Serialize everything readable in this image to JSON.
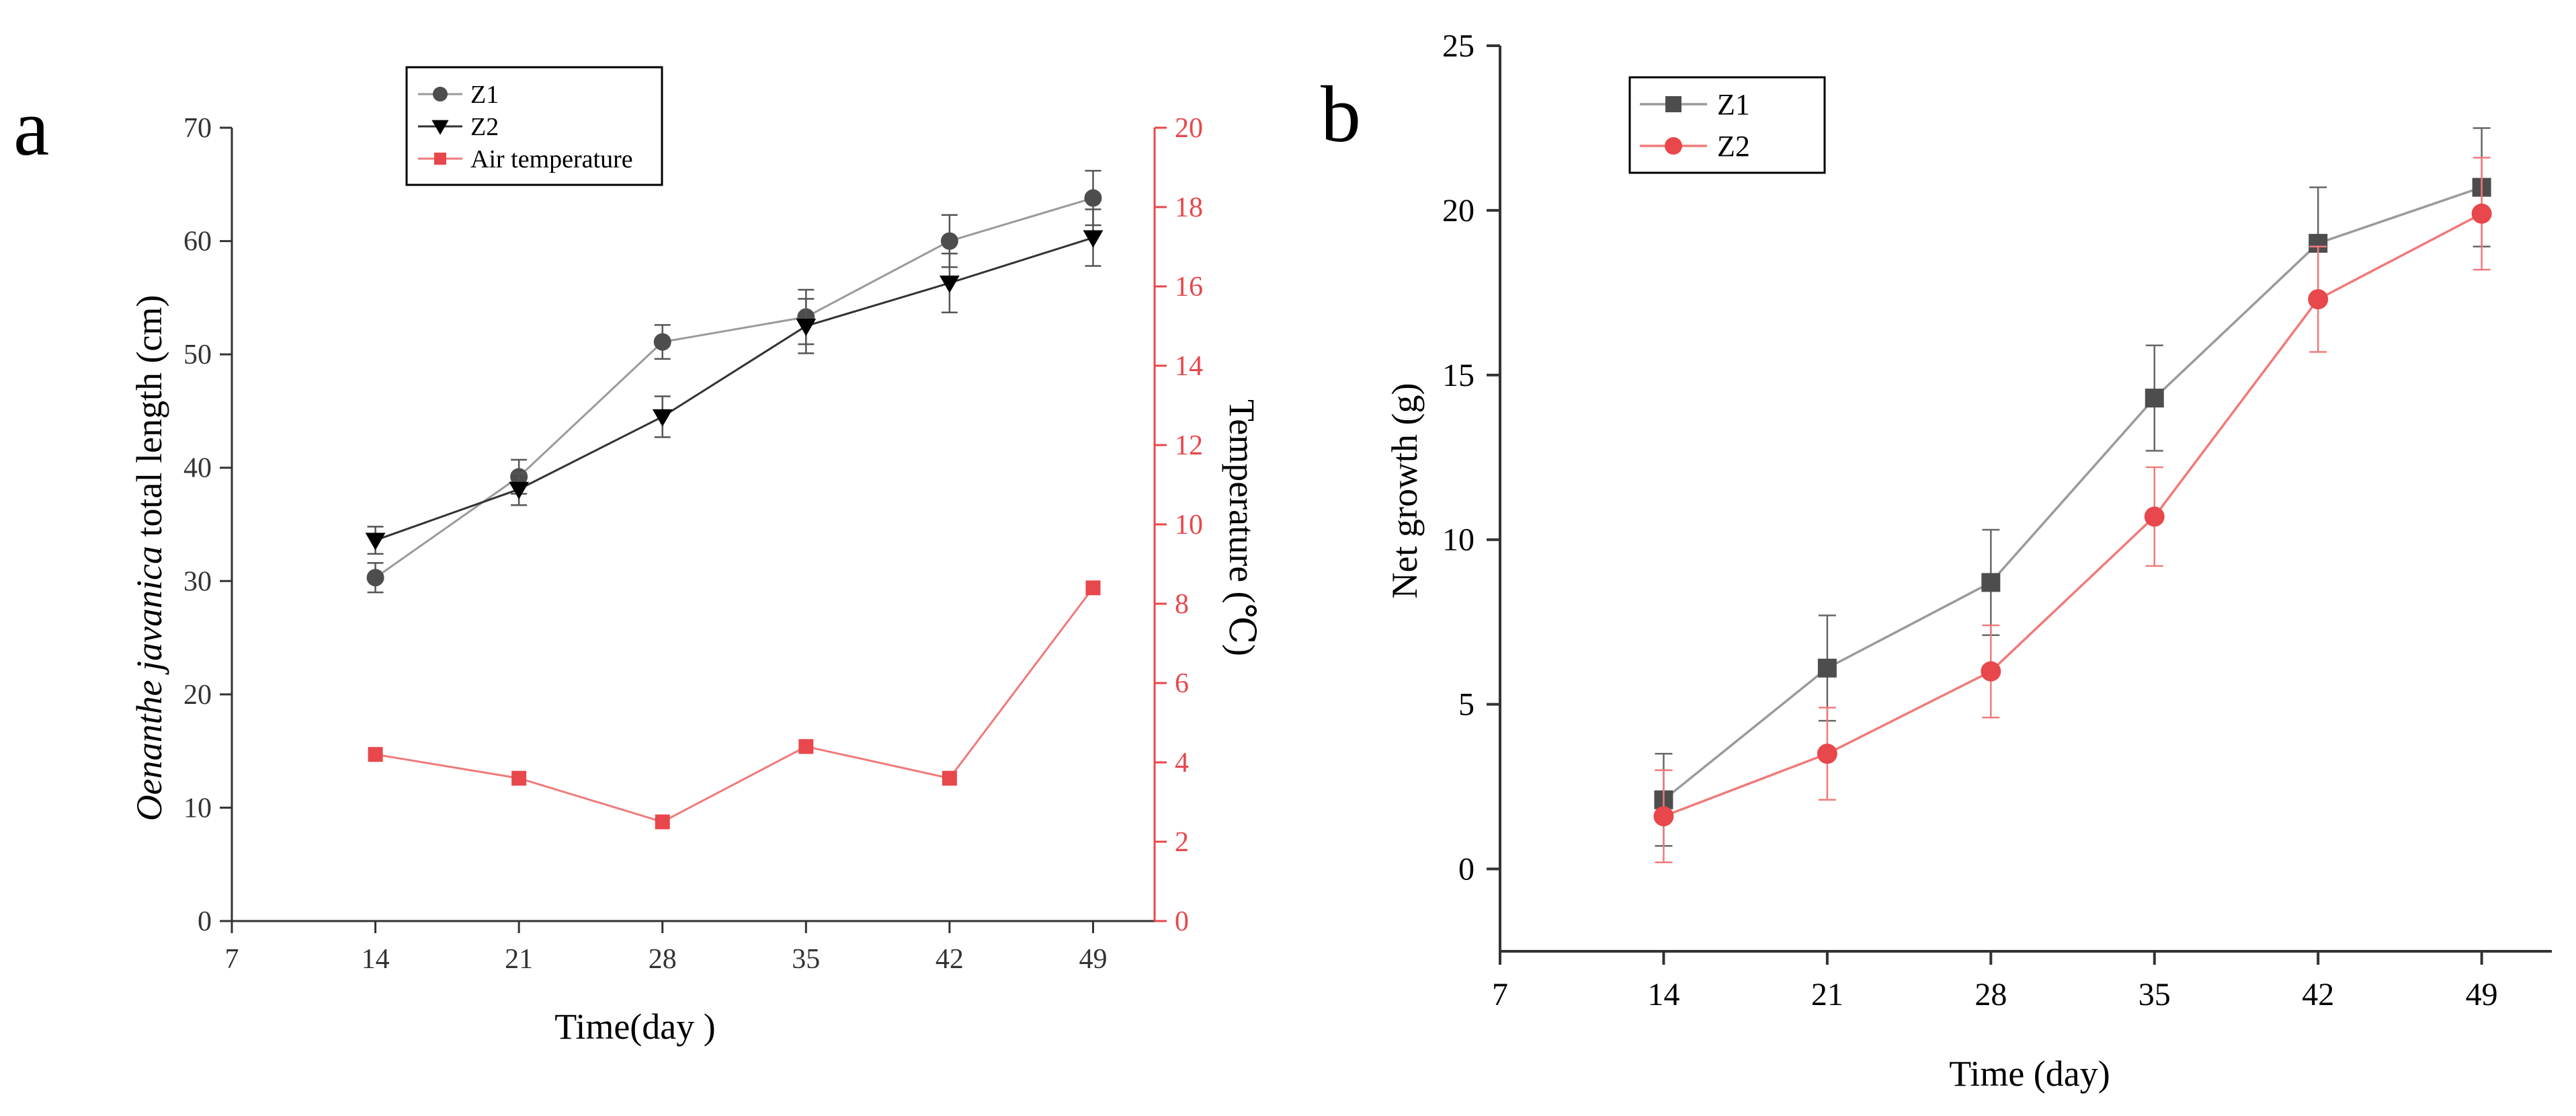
{
  "colors": {
    "axis": "#333333",
    "z1_a": "#4d4d4d",
    "z2_a": "#000000",
    "temp": "#e8474b",
    "z1_b": "#4d4d4d",
    "z2_b": "#e8474b",
    "line_gray": "#9a9a9a",
    "line_red": "#f07a7a"
  },
  "chart_data": [
    {
      "panel": "a",
      "type": "line",
      "title": "",
      "xlabel": "Time(day )",
      "ylabel_italic": "Oenanthe javanica",
      "ylabel_rest": " total length (cm)",
      "y2label": "Temperature (℃)",
      "xlim": [
        7,
        52
      ],
      "ylim": [
        0,
        70
      ],
      "y2lim": [
        0,
        20
      ],
      "x": [
        14,
        21,
        28,
        35,
        42,
        49
      ],
      "xticks": [
        "7",
        "14",
        "21",
        "28",
        "35",
        "42",
        "49"
      ],
      "yticks": [
        "0",
        "10",
        "20",
        "30",
        "40",
        "50",
        "60",
        "70"
      ],
      "y2ticks": [
        "0",
        "2",
        "4",
        "6",
        "8",
        "10",
        "12",
        "14",
        "16",
        "18",
        "20"
      ],
      "legend_position": "top-left",
      "series": [
        {
          "name": "Z1",
          "axis": "left",
          "marker": "circle",
          "values": [
            30.3,
            39.2,
            51.1,
            53.3,
            60.0,
            63.8
          ],
          "errors": [
            1.3,
            1.5,
            1.5,
            2.4,
            2.3,
            2.4
          ]
        },
        {
          "name": "Z2",
          "axis": "left",
          "marker": "triangle-down",
          "values": [
            33.6,
            38.1,
            44.5,
            52.5,
            56.3,
            60.3
          ],
          "errors": [
            1.2,
            1.4,
            1.8,
            2.4,
            2.6,
            2.5
          ]
        },
        {
          "name": "Air temperature",
          "axis": "right",
          "marker": "square",
          "values": [
            4.2,
            3.6,
            2.5,
            4.4,
            3.6,
            8.4
          ],
          "errors": [
            0,
            0,
            0,
            0,
            0,
            0
          ]
        }
      ]
    },
    {
      "panel": "b",
      "type": "line",
      "title": "",
      "xlabel": "Time (day)",
      "ylabel": "Net growth (g)",
      "xlim": [
        7,
        52
      ],
      "ylim": [
        -2.5,
        25
      ],
      "x": [
        14,
        21,
        28,
        35,
        42,
        49
      ],
      "xticks": [
        "7",
        "14",
        "21",
        "28",
        "35",
        "42",
        "49"
      ],
      "yticks": [
        "0",
        "5",
        "10",
        "15",
        "20",
        "25"
      ],
      "legend_position": "top-left",
      "series": [
        {
          "name": "Z1",
          "marker": "square",
          "values": [
            2.1,
            6.1,
            8.7,
            14.3,
            19.0,
            20.7
          ],
          "errors": [
            1.4,
            1.6,
            1.6,
            1.6,
            1.7,
            1.8
          ]
        },
        {
          "name": "Z2",
          "marker": "circle",
          "values": [
            1.6,
            3.5,
            6.0,
            10.7,
            17.3,
            19.9
          ],
          "errors": [
            1.4,
            1.4,
            1.4,
            1.5,
            1.6,
            1.7
          ]
        }
      ]
    }
  ],
  "panel_labels": {
    "a": "a",
    "b": "b"
  }
}
